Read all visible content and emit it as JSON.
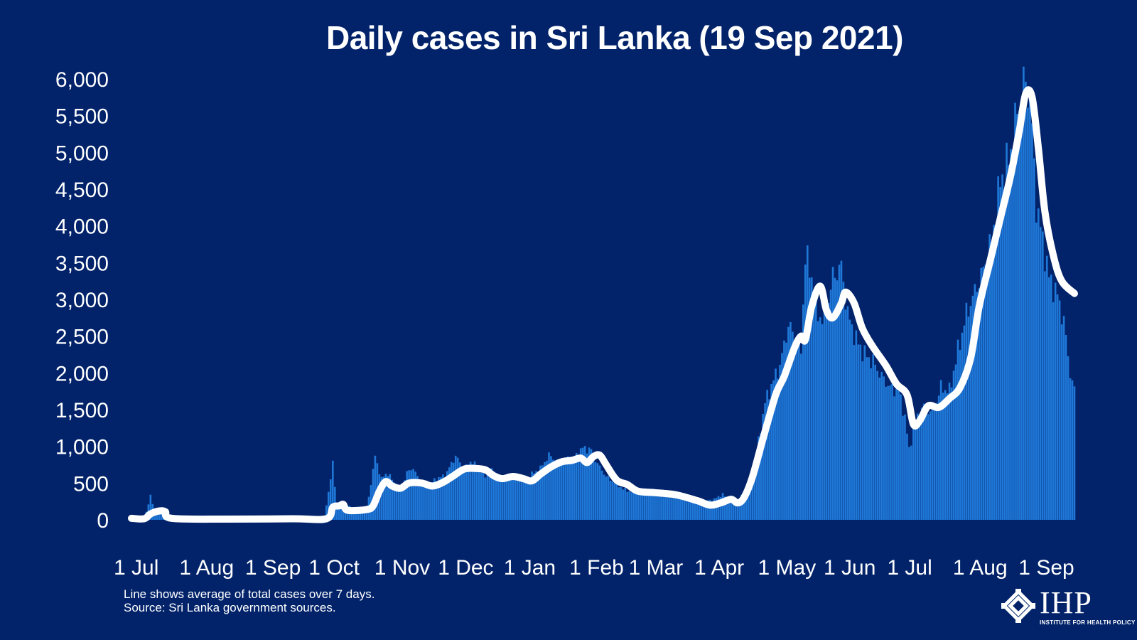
{
  "colors": {
    "background": "#02236a",
    "bars": "#1f78d8",
    "line": "#ffffff",
    "text": "#ffffff"
  },
  "logo": {
    "mark_icon": "ihp-logo-icon",
    "text": "IHP",
    "subtitle": "INSTITUTE FOR HEALTH POLICY"
  },
  "footnote_lines": [
    "Line shows average of total cases over 7 days.",
    "Source: Sri Lanka government sources."
  ],
  "chart_data": {
    "type": "bar",
    "title": "Daily cases in Sri Lanka (19 Sep 2021)",
    "xlabel": "",
    "ylabel": "",
    "ylim": [
      0,
      6000
    ],
    "yticks": [
      0,
      500,
      1000,
      1500,
      2000,
      2500,
      3000,
      3500,
      4000,
      4500,
      5000,
      5500,
      6000
    ],
    "ytick_labels": [
      "0",
      "500",
      "1,000",
      "1,500",
      "2,000",
      "2,500",
      "3,000",
      "3,500",
      "4,000",
      "4,500",
      "5,000",
      "5,500",
      "6,000"
    ],
    "x_start": "2020-07-01",
    "x_end": "2021-09-19",
    "xtick_labels": [
      {
        "date": "2020-07-01",
        "label": "1 Jul"
      },
      {
        "date": "2020-08-01",
        "label": "1 Aug"
      },
      {
        "date": "2020-09-01",
        "label": "1 Sep"
      },
      {
        "date": "2020-10-01",
        "label": "1 Oct"
      },
      {
        "date": "2020-11-01",
        "label": "1 Nov"
      },
      {
        "date": "2020-12-01",
        "label": "1 Dec"
      },
      {
        "date": "2021-01-01",
        "label": "1 Jan"
      },
      {
        "date": "2021-02-01",
        "label": "1 Feb"
      },
      {
        "date": "2021-03-01",
        "label": "1 Mar"
      },
      {
        "date": "2021-04-01",
        "label": "1 Apr"
      },
      {
        "date": "2021-05-01",
        "label": "1 May"
      },
      {
        "date": "2021-06-01",
        "label": "1 Jun"
      },
      {
        "date": "2021-07-01",
        "label": "1 Jul"
      },
      {
        "date": "2021-08-01",
        "label": "1 Aug"
      },
      {
        "date": "2021-09-01",
        "label": "1 Sep"
      }
    ],
    "series": [
      {
        "name": "Daily cases",
        "kind": "bars",
        "points": [
          [
            "2020-07-01",
            0
          ],
          [
            "2020-07-07",
            5
          ],
          [
            "2020-07-10",
            320
          ],
          [
            "2020-07-12",
            130
          ],
          [
            "2020-07-15",
            110
          ],
          [
            "2020-07-18",
            20
          ],
          [
            "2020-07-25",
            10
          ],
          [
            "2020-08-10",
            8
          ],
          [
            "2020-09-01",
            12
          ],
          [
            "2020-09-15",
            20
          ],
          [
            "2020-09-30",
            10
          ],
          [
            "2020-10-04",
            760
          ],
          [
            "2020-10-06",
            150
          ],
          [
            "2020-10-10",
            230
          ],
          [
            "2020-10-14",
            120
          ],
          [
            "2020-10-20",
            130
          ],
          [
            "2020-10-24",
            860
          ],
          [
            "2020-10-27",
            560
          ],
          [
            "2020-10-30",
            640
          ],
          [
            "2020-11-02",
            500
          ],
          [
            "2020-11-05",
            420
          ],
          [
            "2020-11-08",
            640
          ],
          [
            "2020-11-11",
            710
          ],
          [
            "2020-11-14",
            510
          ],
          [
            "2020-11-18",
            470
          ],
          [
            "2020-11-22",
            560
          ],
          [
            "2020-11-26",
            600
          ],
          [
            "2020-12-01",
            870
          ],
          [
            "2020-12-05",
            680
          ],
          [
            "2020-12-08",
            800
          ],
          [
            "2020-12-11",
            720
          ],
          [
            "2020-12-15",
            600
          ],
          [
            "2020-12-19",
            680
          ],
          [
            "2020-12-23",
            540
          ],
          [
            "2020-12-28",
            620
          ],
          [
            "2021-01-02",
            530
          ],
          [
            "2021-01-06",
            620
          ],
          [
            "2021-01-10",
            700
          ],
          [
            "2021-01-14",
            880
          ],
          [
            "2021-01-18",
            800
          ],
          [
            "2021-01-22",
            830
          ],
          [
            "2021-01-26",
            840
          ],
          [
            "2021-01-30",
            980
          ],
          [
            "2021-02-03",
            950
          ],
          [
            "2021-02-06",
            760
          ],
          [
            "2021-02-10",
            590
          ],
          [
            "2021-02-14",
            510
          ],
          [
            "2021-02-18",
            420
          ],
          [
            "2021-02-22",
            380
          ],
          [
            "2021-03-01",
            360
          ],
          [
            "2021-03-07",
            330
          ],
          [
            "2021-03-13",
            310
          ],
          [
            "2021-03-19",
            280
          ],
          [
            "2021-03-25",
            230
          ],
          [
            "2021-04-02",
            280
          ],
          [
            "2021-04-06",
            350
          ],
          [
            "2021-04-10",
            220
          ],
          [
            "2021-04-14",
            280
          ],
          [
            "2021-04-18",
            500
          ],
          [
            "2021-04-22",
            900
          ],
          [
            "2021-04-26",
            1600
          ],
          [
            "2021-04-30",
            1900
          ],
          [
            "2021-05-03",
            2100
          ],
          [
            "2021-05-07",
            2650
          ],
          [
            "2021-05-10",
            2500
          ],
          [
            "2021-05-13",
            2300
          ],
          [
            "2021-05-15",
            3600
          ],
          [
            "2021-05-18",
            3300
          ],
          [
            "2021-05-21",
            2800
          ],
          [
            "2021-05-24",
            2700
          ],
          [
            "2021-05-28",
            3300
          ],
          [
            "2021-06-01",
            3450
          ],
          [
            "2021-06-04",
            2800
          ],
          [
            "2021-06-08",
            2450
          ],
          [
            "2021-06-12",
            2250
          ],
          [
            "2021-06-16",
            2150
          ],
          [
            "2021-06-20",
            1950
          ],
          [
            "2021-06-24",
            1800
          ],
          [
            "2021-06-28",
            1750
          ],
          [
            "2021-07-01",
            1400
          ],
          [
            "2021-07-03",
            950
          ],
          [
            "2021-07-06",
            1350
          ],
          [
            "2021-07-10",
            1550
          ],
          [
            "2021-07-14",
            1450
          ],
          [
            "2021-07-18",
            1800
          ],
          [
            "2021-07-22",
            1750
          ],
          [
            "2021-07-26",
            2300
          ],
          [
            "2021-07-30",
            2800
          ],
          [
            "2021-08-03",
            3100
          ],
          [
            "2021-08-07",
            3400
          ],
          [
            "2021-08-11",
            3800
          ],
          [
            "2021-08-15",
            4600
          ],
          [
            "2021-08-19",
            4900
          ],
          [
            "2021-08-23",
            5550
          ],
          [
            "2021-08-26",
            5950
          ],
          [
            "2021-08-29",
            5800
          ],
          [
            "2021-09-01",
            4300
          ],
          [
            "2021-09-04",
            3800
          ],
          [
            "2021-09-07",
            3300
          ],
          [
            "2021-09-11",
            3050
          ],
          [
            "2021-09-14",
            2700
          ],
          [
            "2021-09-17",
            2000
          ],
          [
            "2021-09-19",
            1750
          ]
        ]
      },
      {
        "name": "7-day average",
        "kind": "line",
        "points": [
          [
            "2020-07-01",
            20
          ],
          [
            "2020-07-07",
            15
          ],
          [
            "2020-07-10",
            80
          ],
          [
            "2020-07-14",
            120
          ],
          [
            "2020-07-17",
            110
          ],
          [
            "2020-07-20",
            20
          ],
          [
            "2020-08-15",
            10
          ],
          [
            "2020-09-15",
            15
          ],
          [
            "2020-10-01",
            15
          ],
          [
            "2020-10-04",
            170
          ],
          [
            "2020-10-07",
            190
          ],
          [
            "2020-10-09",
            210
          ],
          [
            "2020-10-11",
            130
          ],
          [
            "2020-10-20",
            140
          ],
          [
            "2020-10-23",
            190
          ],
          [
            "2020-10-26",
            390
          ],
          [
            "2020-10-29",
            520
          ],
          [
            "2020-11-01",
            460
          ],
          [
            "2020-11-05",
            430
          ],
          [
            "2020-11-09",
            500
          ],
          [
            "2020-11-15",
            500
          ],
          [
            "2020-11-20",
            460
          ],
          [
            "2020-11-25",
            510
          ],
          [
            "2020-11-30",
            600
          ],
          [
            "2020-12-05",
            690
          ],
          [
            "2020-12-10",
            700
          ],
          [
            "2020-12-15",
            680
          ],
          [
            "2020-12-19",
            600
          ],
          [
            "2020-12-23",
            560
          ],
          [
            "2020-12-28",
            590
          ],
          [
            "2021-01-02",
            560
          ],
          [
            "2021-01-06",
            530
          ],
          [
            "2021-01-10",
            620
          ],
          [
            "2021-01-15",
            720
          ],
          [
            "2021-01-20",
            790
          ],
          [
            "2021-01-25",
            810
          ],
          [
            "2021-01-29",
            840
          ],
          [
            "2021-02-01",
            780
          ],
          [
            "2021-02-04",
            860
          ],
          [
            "2021-02-07",
            880
          ],
          [
            "2021-02-10",
            750
          ],
          [
            "2021-02-15",
            540
          ],
          [
            "2021-02-20",
            480
          ],
          [
            "2021-02-25",
            390
          ],
          [
            "2021-03-05",
            370
          ],
          [
            "2021-03-15",
            340
          ],
          [
            "2021-03-25",
            260
          ],
          [
            "2021-03-31",
            200
          ],
          [
            "2021-04-05",
            230
          ],
          [
            "2021-04-10",
            280
          ],
          [
            "2021-04-13",
            230
          ],
          [
            "2021-04-16",
            300
          ],
          [
            "2021-04-20",
            580
          ],
          [
            "2021-04-25",
            1100
          ],
          [
            "2021-05-01",
            1700
          ],
          [
            "2021-05-05",
            1950
          ],
          [
            "2021-05-10",
            2350
          ],
          [
            "2021-05-13",
            2500
          ],
          [
            "2021-05-15",
            2450
          ],
          [
            "2021-05-18",
            2900
          ],
          [
            "2021-05-22",
            3180
          ],
          [
            "2021-05-25",
            2850
          ],
          [
            "2021-05-28",
            2750
          ],
          [
            "2021-06-01",
            2950
          ],
          [
            "2021-06-03",
            3100
          ],
          [
            "2021-06-07",
            2950
          ],
          [
            "2021-06-11",
            2600
          ],
          [
            "2021-06-16",
            2350
          ],
          [
            "2021-06-22",
            2100
          ],
          [
            "2021-06-27",
            1850
          ],
          [
            "2021-07-02",
            1700
          ],
          [
            "2021-07-05",
            1300
          ],
          [
            "2021-07-08",
            1350
          ],
          [
            "2021-07-12",
            1550
          ],
          [
            "2021-07-17",
            1530
          ],
          [
            "2021-07-22",
            1650
          ],
          [
            "2021-07-27",
            1800
          ],
          [
            "2021-08-01",
            2200
          ],
          [
            "2021-08-05",
            2900
          ],
          [
            "2021-08-10",
            3500
          ],
          [
            "2021-08-15",
            4100
          ],
          [
            "2021-08-20",
            4700
          ],
          [
            "2021-08-24",
            5300
          ],
          [
            "2021-08-27",
            5800
          ],
          [
            "2021-08-30",
            5750
          ],
          [
            "2021-09-02",
            5050
          ],
          [
            "2021-09-05",
            4200
          ],
          [
            "2021-09-09",
            3600
          ],
          [
            "2021-09-13",
            3250
          ],
          [
            "2021-09-19",
            3080
          ]
        ]
      }
    ]
  }
}
